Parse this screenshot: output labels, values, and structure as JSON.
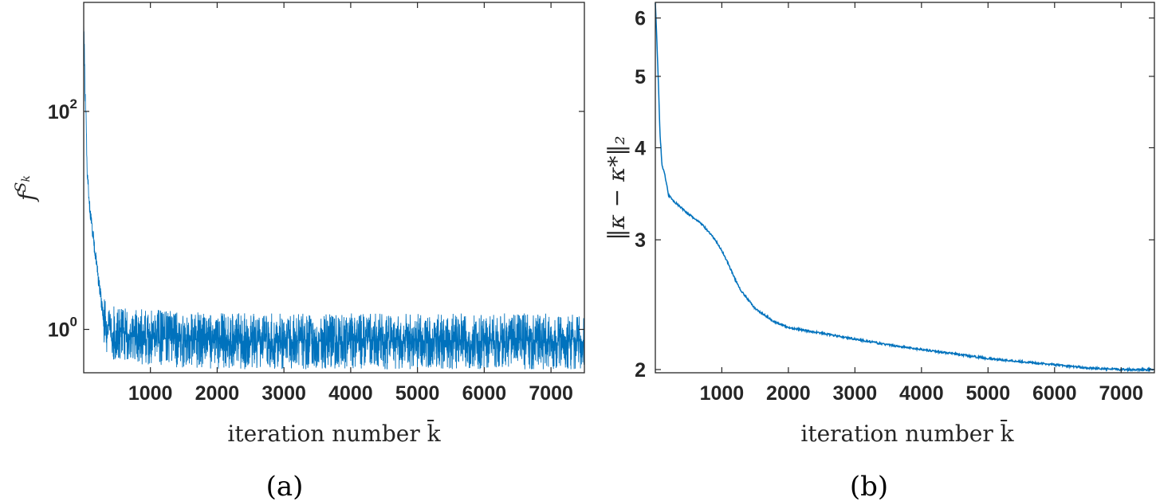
{
  "chart_data": [
    {
      "type": "line",
      "panel_label": "(a)",
      "xlabel": "iteration number k̄",
      "ylabel": "f^{S_k}",
      "yscale": "log",
      "xlim": [
        1,
        7500
      ],
      "ylim": [
        0.4,
        1000
      ],
      "x_ticks": [
        1000,
        2000,
        3000,
        4000,
        5000,
        6000,
        7000
      ],
      "x_tick_labels": [
        "1000",
        "2000",
        "3000",
        "4000",
        "5000",
        "6000",
        "7000"
      ],
      "y_ticks": [
        {
          "base": "10",
          "exp": "0"
        },
        {
          "base": "10",
          "exp": "2"
        }
      ],
      "grid": false,
      "color": "#0072BD",
      "series": [
        {
          "x": [
            1,
            20,
            50,
            80,
            120,
            170,
            220,
            260,
            300,
            400,
            600,
            1000,
            1500,
            2500,
            4000,
            5500,
            7500
          ],
          "y": [
            600,
            150,
            30,
            15,
            9,
            5,
            3,
            1.9,
            1.2,
            0.95,
            0.9,
            0.85,
            0.8,
            0.78,
            0.78,
            0.78,
            0.78
          ],
          "noise_band": {
            "low": 0.55,
            "high": 1.8
          }
        }
      ]
    },
    {
      "type": "line",
      "panel_label": "(b)",
      "xlabel": "iteration number k̄",
      "ylabel": "‖κ − κ*‖₂",
      "yscale": "log",
      "xlim": [
        1,
        7500
      ],
      "ylim": [
        1.98,
        6.3
      ],
      "x_ticks": [
        1000,
        2000,
        3000,
        4000,
        5000,
        6000,
        7000
      ],
      "x_tick_labels": [
        "1000",
        "2000",
        "3000",
        "4000",
        "5000",
        "6000",
        "7000"
      ],
      "y_ticks": [
        2,
        3,
        4,
        5,
        6
      ],
      "y_tick_labels": [
        "2",
        "3",
        "4",
        "5",
        "6"
      ],
      "grid": false,
      "color": "#0072BD",
      "series": [
        {
          "x": [
            1,
            30,
            70,
            100,
            150,
            200,
            300,
            500,
            700,
            900,
            1000,
            1100,
            1200,
            1300,
            1500,
            1700,
            1800,
            2000,
            2500,
            3000,
            3500,
            4000,
            4500,
            5000,
            5500,
            6000,
            6500,
            7000,
            7500
          ],
          "y": [
            6.3,
            5.4,
            4.2,
            3.8,
            3.65,
            3.45,
            3.37,
            3.25,
            3.15,
            3.0,
            2.9,
            2.78,
            2.65,
            2.55,
            2.42,
            2.35,
            2.32,
            2.28,
            2.24,
            2.2,
            2.16,
            2.13,
            2.1,
            2.07,
            2.05,
            2.03,
            2.01,
            2.0,
            2.0
          ]
        }
      ]
    }
  ]
}
